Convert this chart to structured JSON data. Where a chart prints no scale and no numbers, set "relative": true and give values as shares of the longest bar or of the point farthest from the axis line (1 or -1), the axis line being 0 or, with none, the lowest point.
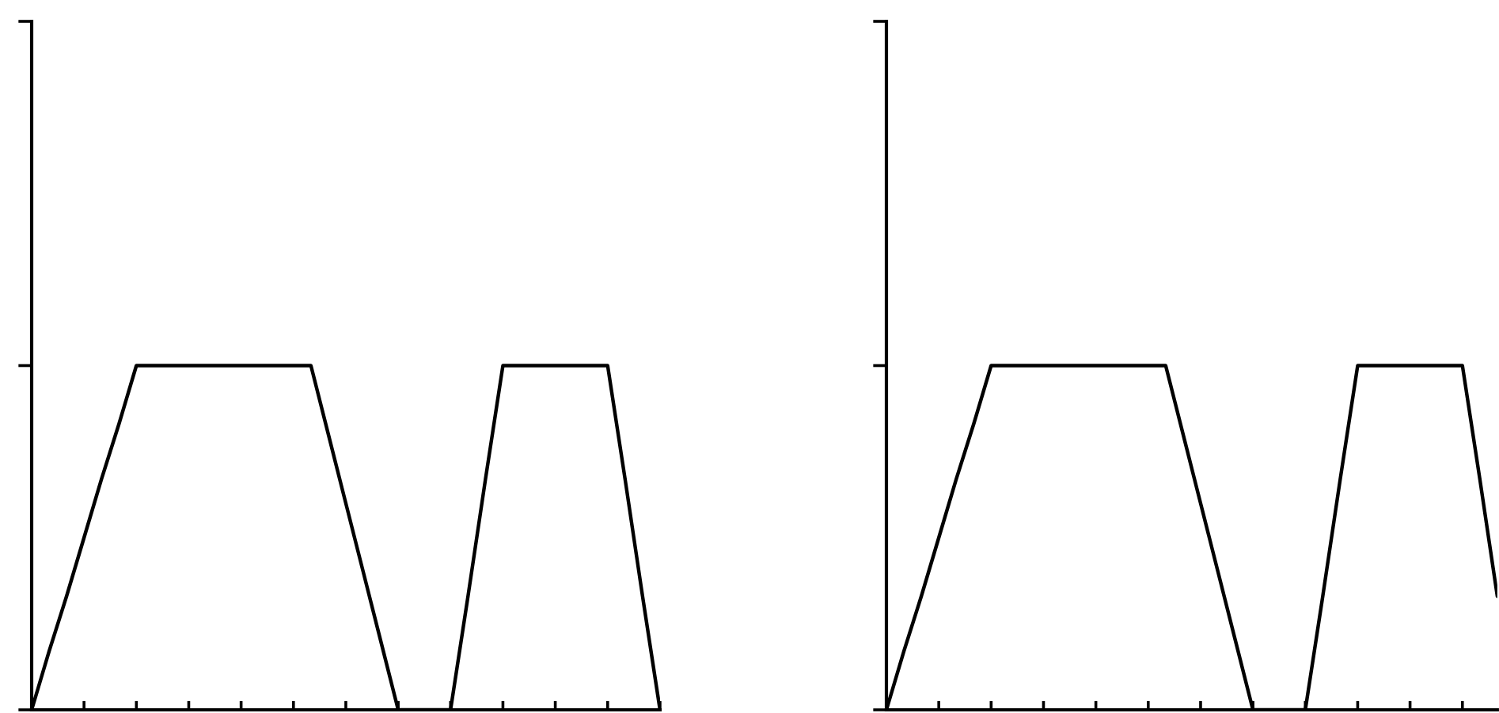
{
  "chart_data": [
    {
      "type": "line",
      "relative": true,
      "categories": [
        null,
        null,
        null,
        null,
        null,
        null,
        null,
        null,
        null,
        null,
        null,
        null,
        null,
        null,
        null,
        null,
        null,
        null,
        null,
        null,
        null,
        null,
        null,
        null,
        null,
        null,
        null,
        null,
        null,
        null,
        null,
        null,
        null,
        null,
        null,
        null,
        null
      ],
      "series": [
        {
          "color": "#000000",
          "values": [
            0,
            0.17,
            0.33,
            0.5,
            0.67,
            0.83,
            1,
            1,
            1,
            1,
            1,
            1,
            1,
            1,
            1,
            1,
            1,
            0.8,
            0.6,
            0.4,
            0.2,
            0,
            0,
            0,
            0,
            0.33,
            0.67,
            1,
            1,
            1,
            1,
            1,
            1,
            1,
            0.67,
            0.33,
            0
          ]
        }
      ]
    },
    {
      "type": "line",
      "relative": true,
      "categories": [
        null,
        null,
        null,
        null,
        null,
        null,
        null,
        null,
        null,
        null,
        null,
        null,
        null,
        null,
        null,
        null,
        null,
        null,
        null,
        null,
        null,
        null,
        null,
        null,
        null,
        null,
        null,
        null,
        null,
        null,
        null,
        null,
        null,
        null,
        null,
        null
      ],
      "series": [
        {
          "color": "#000000",
          "values": [
            0,
            0.17,
            0.33,
            0.5,
            0.67,
            0.83,
            1,
            1,
            1,
            1,
            1,
            1,
            1,
            1,
            1,
            1,
            1,
            0.8,
            0.6,
            0.4,
            0.2,
            0,
            0,
            0,
            0,
            0.33,
            0.67,
            1,
            1,
            1,
            1,
            1,
            1,
            1,
            0.67,
            0.33
          ]
        }
      ]
    }
  ]
}
